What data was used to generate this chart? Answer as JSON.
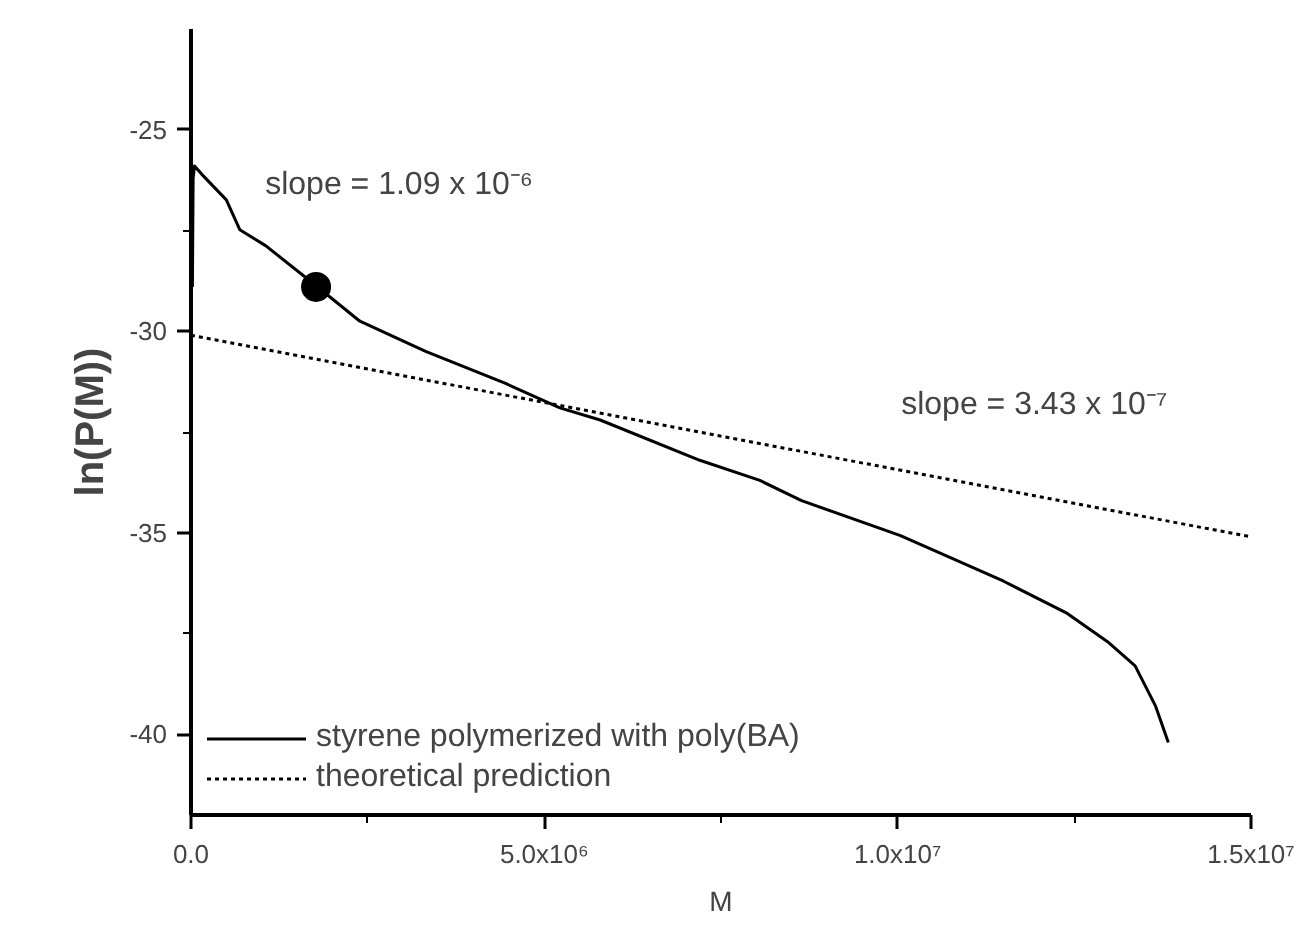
{
  "chart_data": {
    "type": "line",
    "xlabel": "M",
    "ylabel": "ln(P(M))",
    "xlim": [
      0,
      15000000
    ],
    "ylim": [
      -42,
      -22.5
    ],
    "xticks": [
      {
        "value": 0,
        "label": "0.0"
      },
      {
        "value": 2500000,
        "label": null
      },
      {
        "value": 5000000,
        "label": "5.0x10⁶"
      },
      {
        "value": 7500000,
        "label": null
      },
      {
        "value": 10000000,
        "label": "1.0x10⁷"
      },
      {
        "value": 12500000,
        "label": null
      },
      {
        "value": 15000000,
        "label": "1.5x10⁷"
      }
    ],
    "yticks": [
      -25,
      {
        "value": -27.5,
        "label": null
      },
      -30,
      {
        "value": -32.5,
        "label": null
      },
      -35,
      {
        "value": -37.5,
        "label": null
      },
      -40
    ],
    "grid": false,
    "legend": "bottom left",
    "marker": "none",
    "annotations": [
      "slope = 1.09 x 10⁻⁶",
      "slope = 3.43 x 10⁻⁷"
    ],
    "series": [
      {
        "name": "styrene polymerized with poly(BA)",
        "color": "#000000",
        "line_style": "solid",
        "x": [
          20000,
          30000,
          50000,
          150000,
          500000,
          690000,
          1060000,
          1770000,
          2390000,
          3320000,
          4460000,
          5220000,
          5790000,
          7200000,
          8050000,
          8640000,
          10040000,
          11500000,
          12400000,
          12970000,
          13360000,
          13650000,
          13830000
        ],
        "values": [
          -28.9,
          -26.2,
          -25.9,
          -26.1,
          -26.74,
          -27.48,
          -27.88,
          -28.87,
          -29.75,
          -30.5,
          -31.3,
          -31.9,
          -32.2,
          -33.2,
          -33.7,
          -34.2,
          -35.07,
          -36.2,
          -37.0,
          -37.7,
          -38.3,
          -39.3,
          -40.2
        ]
      },
      {
        "name": "theoretical prediction",
        "color": "#000000",
        "line_style": "dotted",
        "x": [
          0,
          15000000
        ],
        "values": [
          -30.1,
          -35.1
        ]
      },
      {
        "type": "scatter",
        "color": "#000000",
        "marker": "circle",
        "x": [
          1770000
        ],
        "values": [
          -28.9
        ]
      }
    ]
  }
}
